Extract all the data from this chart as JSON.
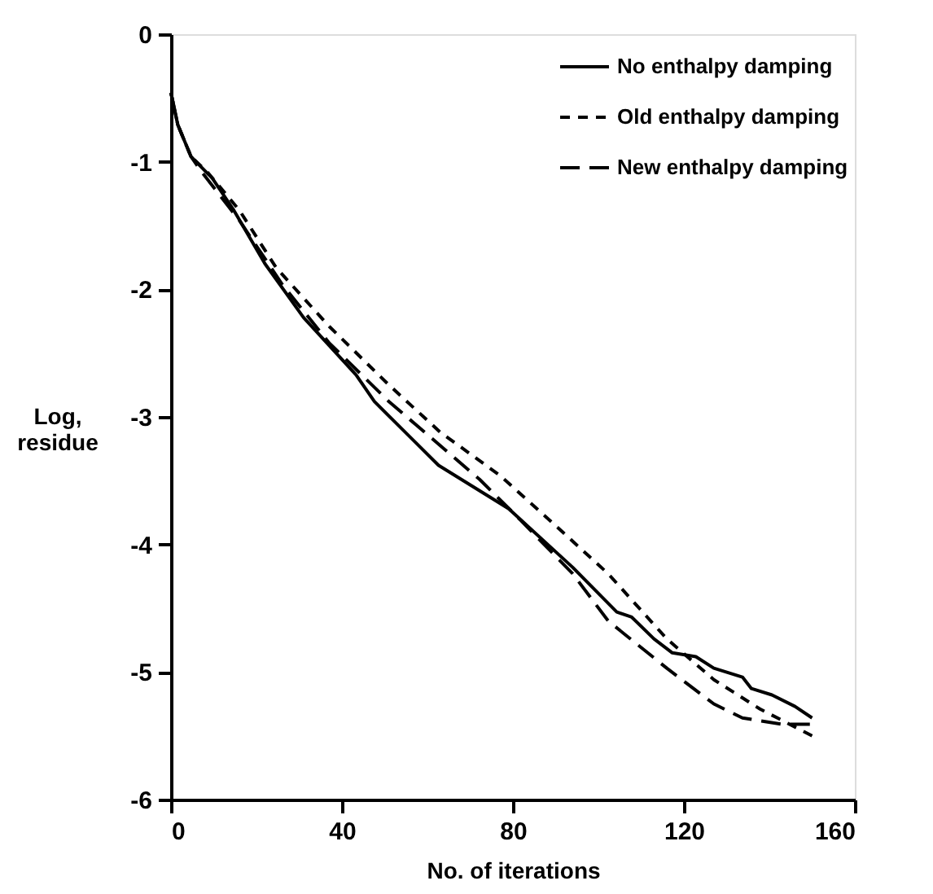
{
  "chart_data": {
    "type": "line",
    "xlabel": "No. of iterations",
    "ylabel": "Log, residue",
    "xlim": [
      0,
      160
    ],
    "xticks": [
      0,
      40,
      80,
      120,
      160
    ],
    "ylim": [
      -6,
      0
    ],
    "yticks": [
      0,
      -1,
      -2,
      -3,
      -4,
      -5,
      -6
    ],
    "grid": false,
    "legend": "top right",
    "marker": "none",
    "series": [
      {
        "name": "No enthalpy damping",
        "color": "#000000",
        "line_style": "solid",
        "x": [
          0,
          1.6,
          4.7,
          9.7,
          14.7,
          22,
          31,
          43.3,
          47.6,
          62.6,
          79,
          94,
          104.3,
          107.8,
          113,
          117.3,
          122.8,
          127,
          133.7,
          135.8,
          140.6,
          146,
          150
        ],
        "values": [
          -0.46,
          -0.71,
          -0.96,
          -1.13,
          -1.38,
          -1.8,
          -2.22,
          -2.67,
          -2.88,
          -3.38,
          -3.72,
          -4.18,
          -4.53,
          -4.57,
          -4.74,
          -4.85,
          -4.88,
          -4.97,
          -5.04,
          -5.13,
          -5.18,
          -5.27,
          -5.36
        ]
      },
      {
        "name": "Old enthalpy damping",
        "color": "#000000",
        "line_style": "dashed",
        "x": [
          0,
          1.6,
          4.7,
          8.5,
          16,
          24.6,
          37,
          51,
          63,
          77,
          88.6,
          102.3,
          116,
          127,
          137.8,
          150
        ],
        "values": [
          -0.46,
          -0.71,
          -0.96,
          -1.08,
          -1.38,
          -1.83,
          -2.29,
          -2.75,
          -3.12,
          -3.46,
          -3.81,
          -4.23,
          -4.74,
          -5.06,
          -5.29,
          -5.5
        ]
      },
      {
        "name": "New enthalpy damping",
        "color": "#000000",
        "line_style": "dashed",
        "x": [
          0,
          1.6,
          4.7,
          7.2,
          16,
          26,
          37,
          51,
          72.2,
          81.8,
          94,
          102.3,
          116,
          127,
          133.7,
          143,
          150
        ],
        "values": [
          -0.46,
          -0.71,
          -0.96,
          -1.08,
          -1.46,
          -1.96,
          -2.42,
          -2.88,
          -3.49,
          -3.81,
          -4.23,
          -4.6,
          -4.97,
          -5.25,
          -5.36,
          -5.41,
          -5.41
        ]
      }
    ]
  }
}
